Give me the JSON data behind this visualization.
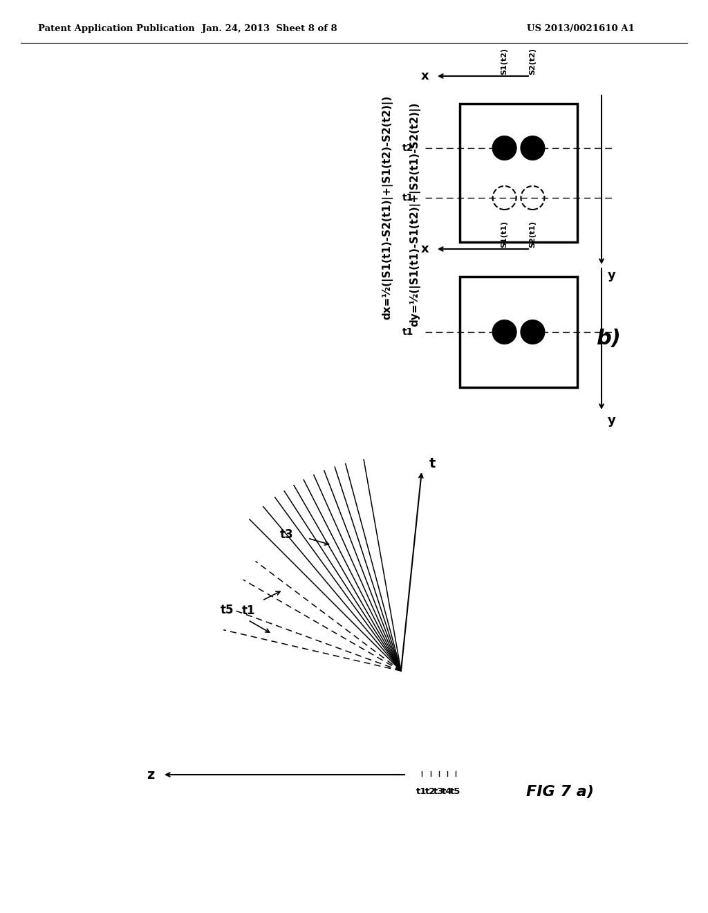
{
  "header_left": "Patent Application Publication",
  "header_mid": "Jan. 24, 2013  Sheet 8 of 8",
  "header_right": "US 2013/0021610 A1",
  "bg_color": "#ffffff",
  "fig_a_label": "FIG 7 a)",
  "fig_b_label": "b)",
  "dx_formula": "dx=½(|S1(t1)-S2(t1)|+|S1(t2)-S2(t2)|)",
  "dy_formula": "dy=½(|S1(t1)-S1(t2)|+|S2(t1)-S2(t2)|)"
}
